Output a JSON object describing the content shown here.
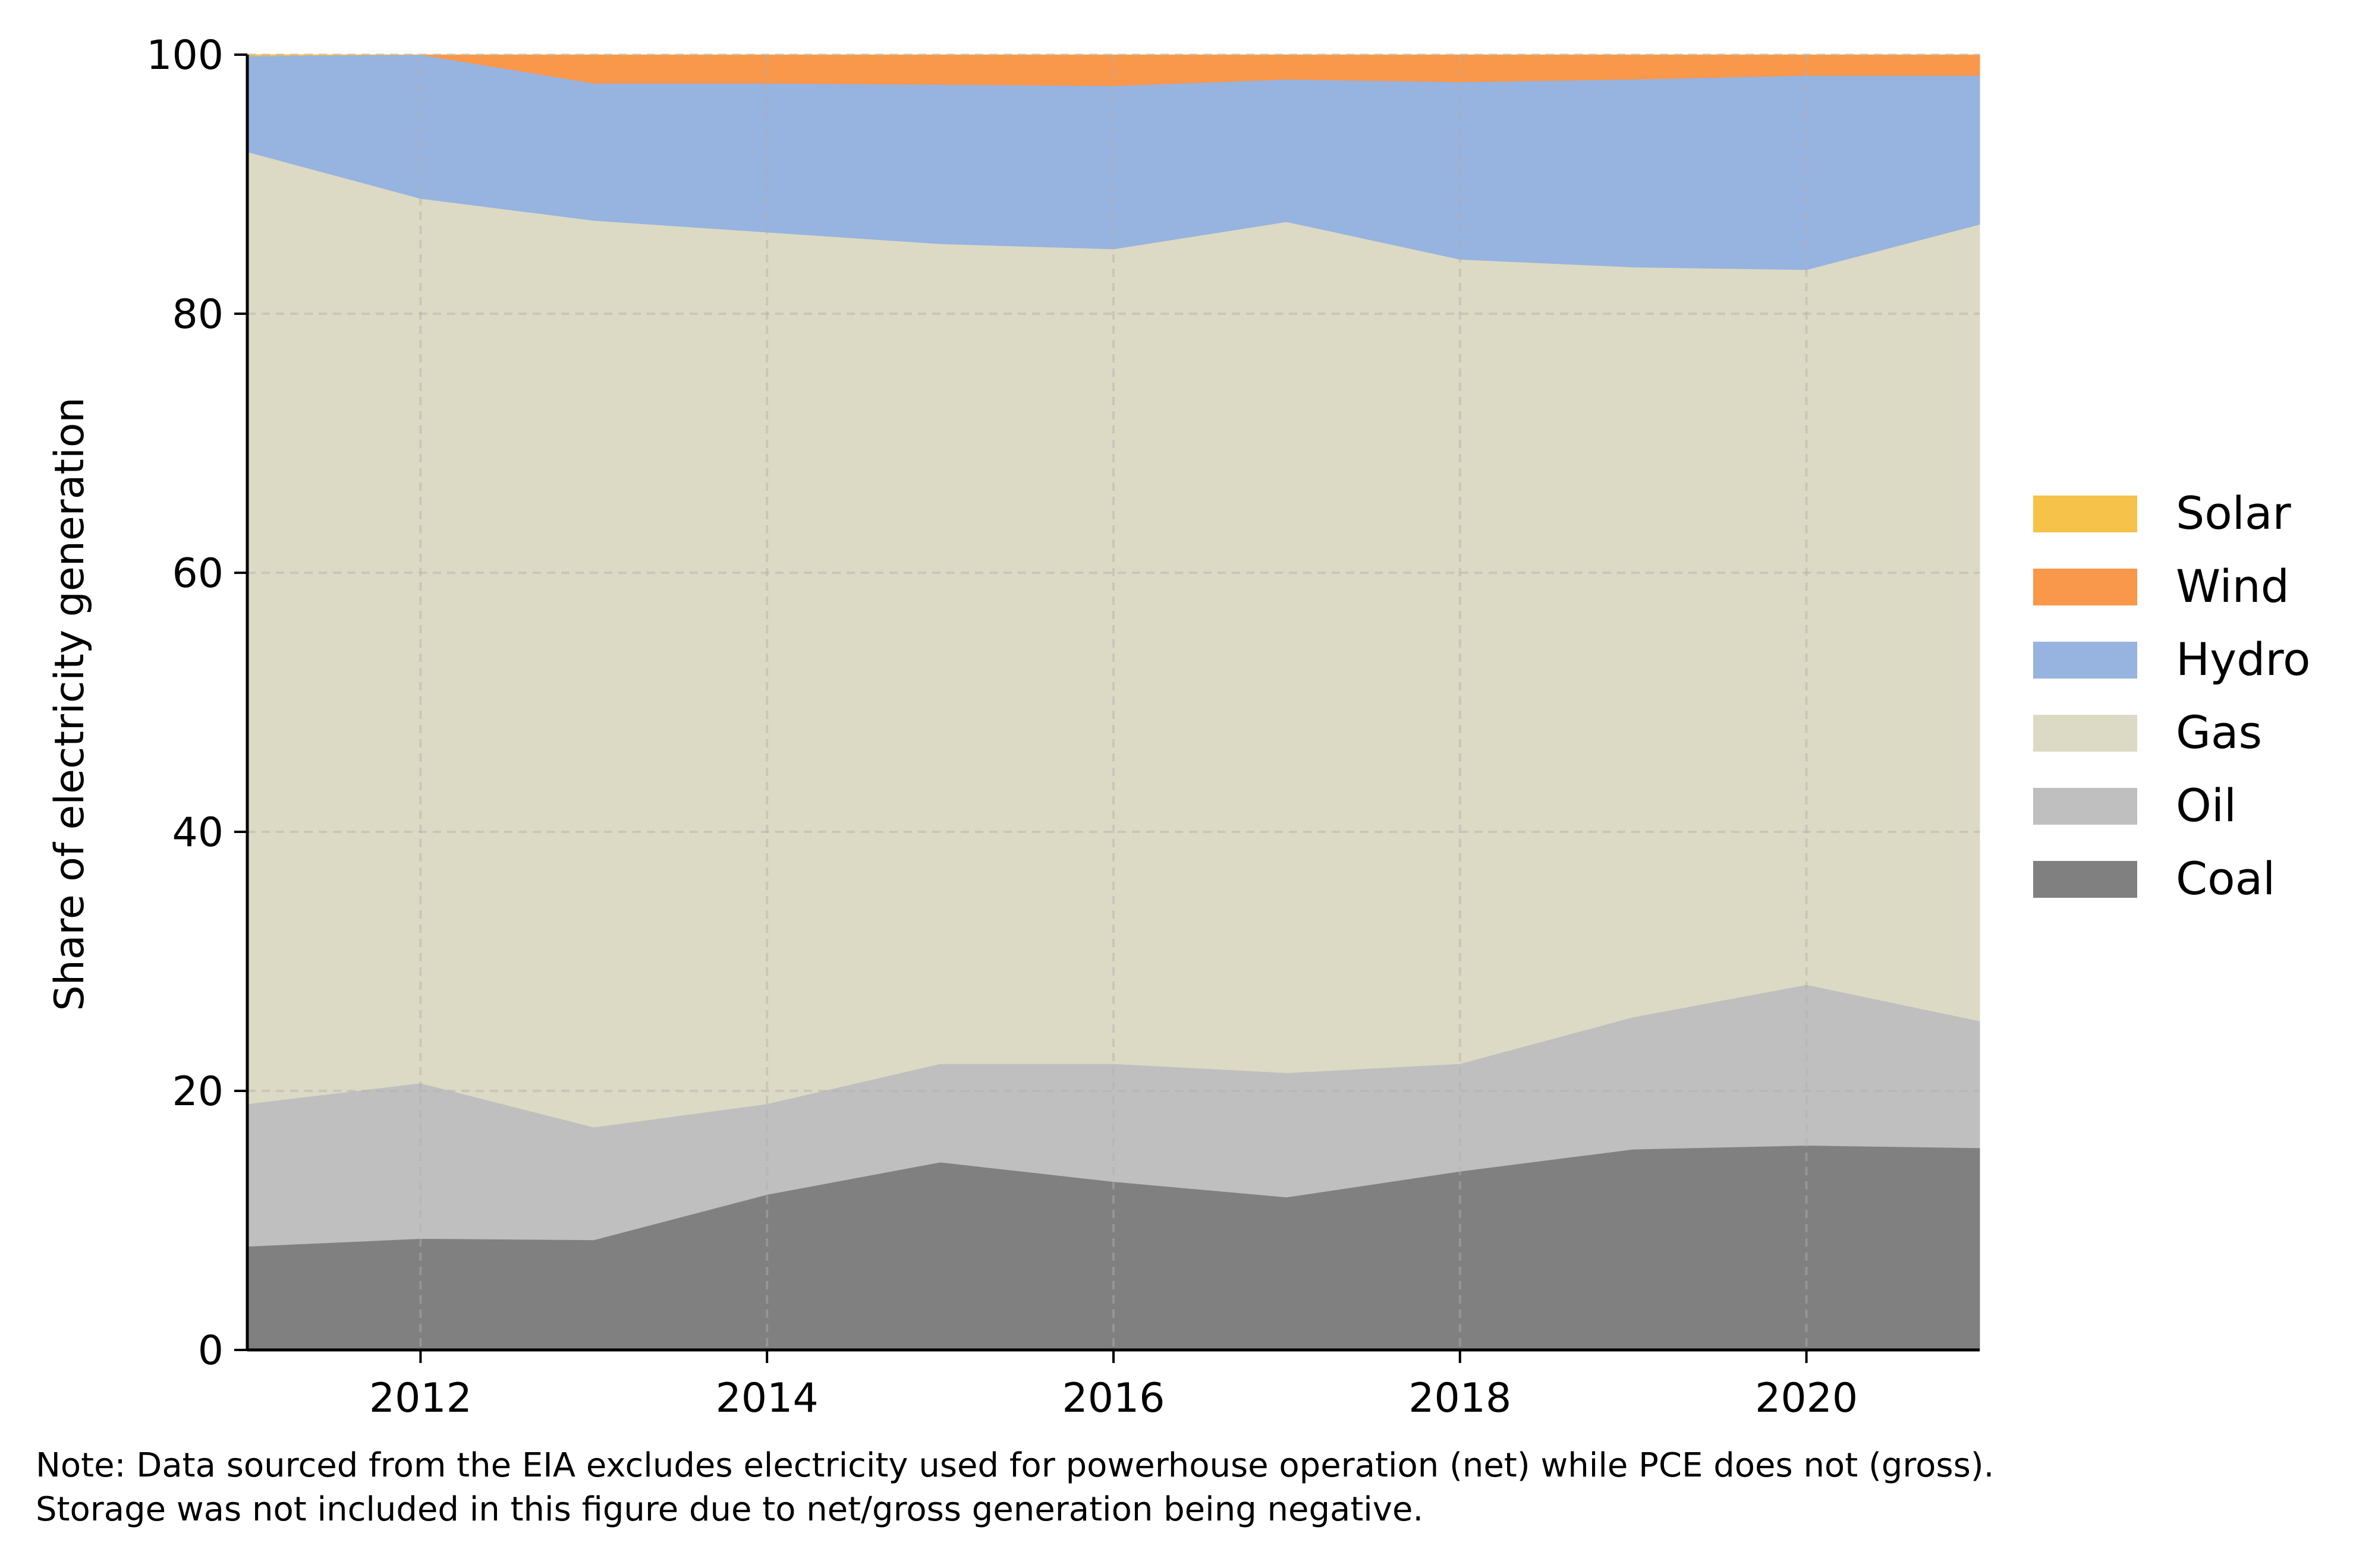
{
  "chart_data": {
    "type": "area",
    "stacked": true,
    "title": "",
    "xlabel": "",
    "ylabel": "Share of electricity generation",
    "xlim": [
      2011,
      2021
    ],
    "ylim": [
      0,
      100
    ],
    "x": [
      2011,
      2012,
      2013,
      2014,
      2015,
      2016,
      2017,
      2018,
      2019,
      2020,
      2021
    ],
    "x_ticks": [
      2012,
      2014,
      2016,
      2018,
      2020
    ],
    "y_ticks": [
      0,
      20,
      40,
      60,
      80,
      100
    ],
    "grid": true,
    "legend_placement": "right",
    "series": [
      {
        "name": "Coal",
        "color": "#808080",
        "values": [
          8.0,
          8.6,
          8.5,
          12.0,
          14.5,
          13.0,
          11.8,
          13.8,
          15.5,
          15.8,
          15.6
        ]
      },
      {
        "name": "Oil",
        "color": "#bfbfbf",
        "values": [
          11.0,
          12.0,
          8.7,
          7.0,
          7.6,
          9.1,
          9.6,
          8.3,
          10.2,
          12.4,
          9.8
        ]
      },
      {
        "name": "Gas",
        "color": "#dcdac4",
        "values": [
          73.5,
          68.3,
          70.0,
          67.3,
          63.3,
          62.9,
          65.7,
          62.1,
          57.9,
          55.2,
          61.5
        ]
      },
      {
        "name": "Hydro",
        "color": "#97b3df",
        "values": [
          7.4,
          11.1,
          10.6,
          11.5,
          12.3,
          12.6,
          11.0,
          13.7,
          14.5,
          15.0,
          11.5
        ]
      },
      {
        "name": "Wind",
        "color": "#f9974a",
        "values": [
          0.0,
          0.0,
          2.2,
          2.2,
          2.3,
          2.4,
          1.9,
          2.1,
          1.9,
          1.6,
          1.6
        ]
      },
      {
        "name": "Solar",
        "color": "#f7c24a",
        "values": [
          0.1,
          0.0,
          0.0,
          0.0,
          0.0,
          0.0,
          0.0,
          0.0,
          0.0,
          0.0,
          0.0
        ]
      }
    ],
    "legend_order": [
      "Solar",
      "Wind",
      "Hydro",
      "Gas",
      "Oil",
      "Coal"
    ],
    "note_lines": [
      "Note: Data sourced from the EIA excludes electricity used for powerhouse operation (net) while PCE does not (gross).",
      "Storage was not included in this figure due to net/gross generation being negative."
    ]
  }
}
